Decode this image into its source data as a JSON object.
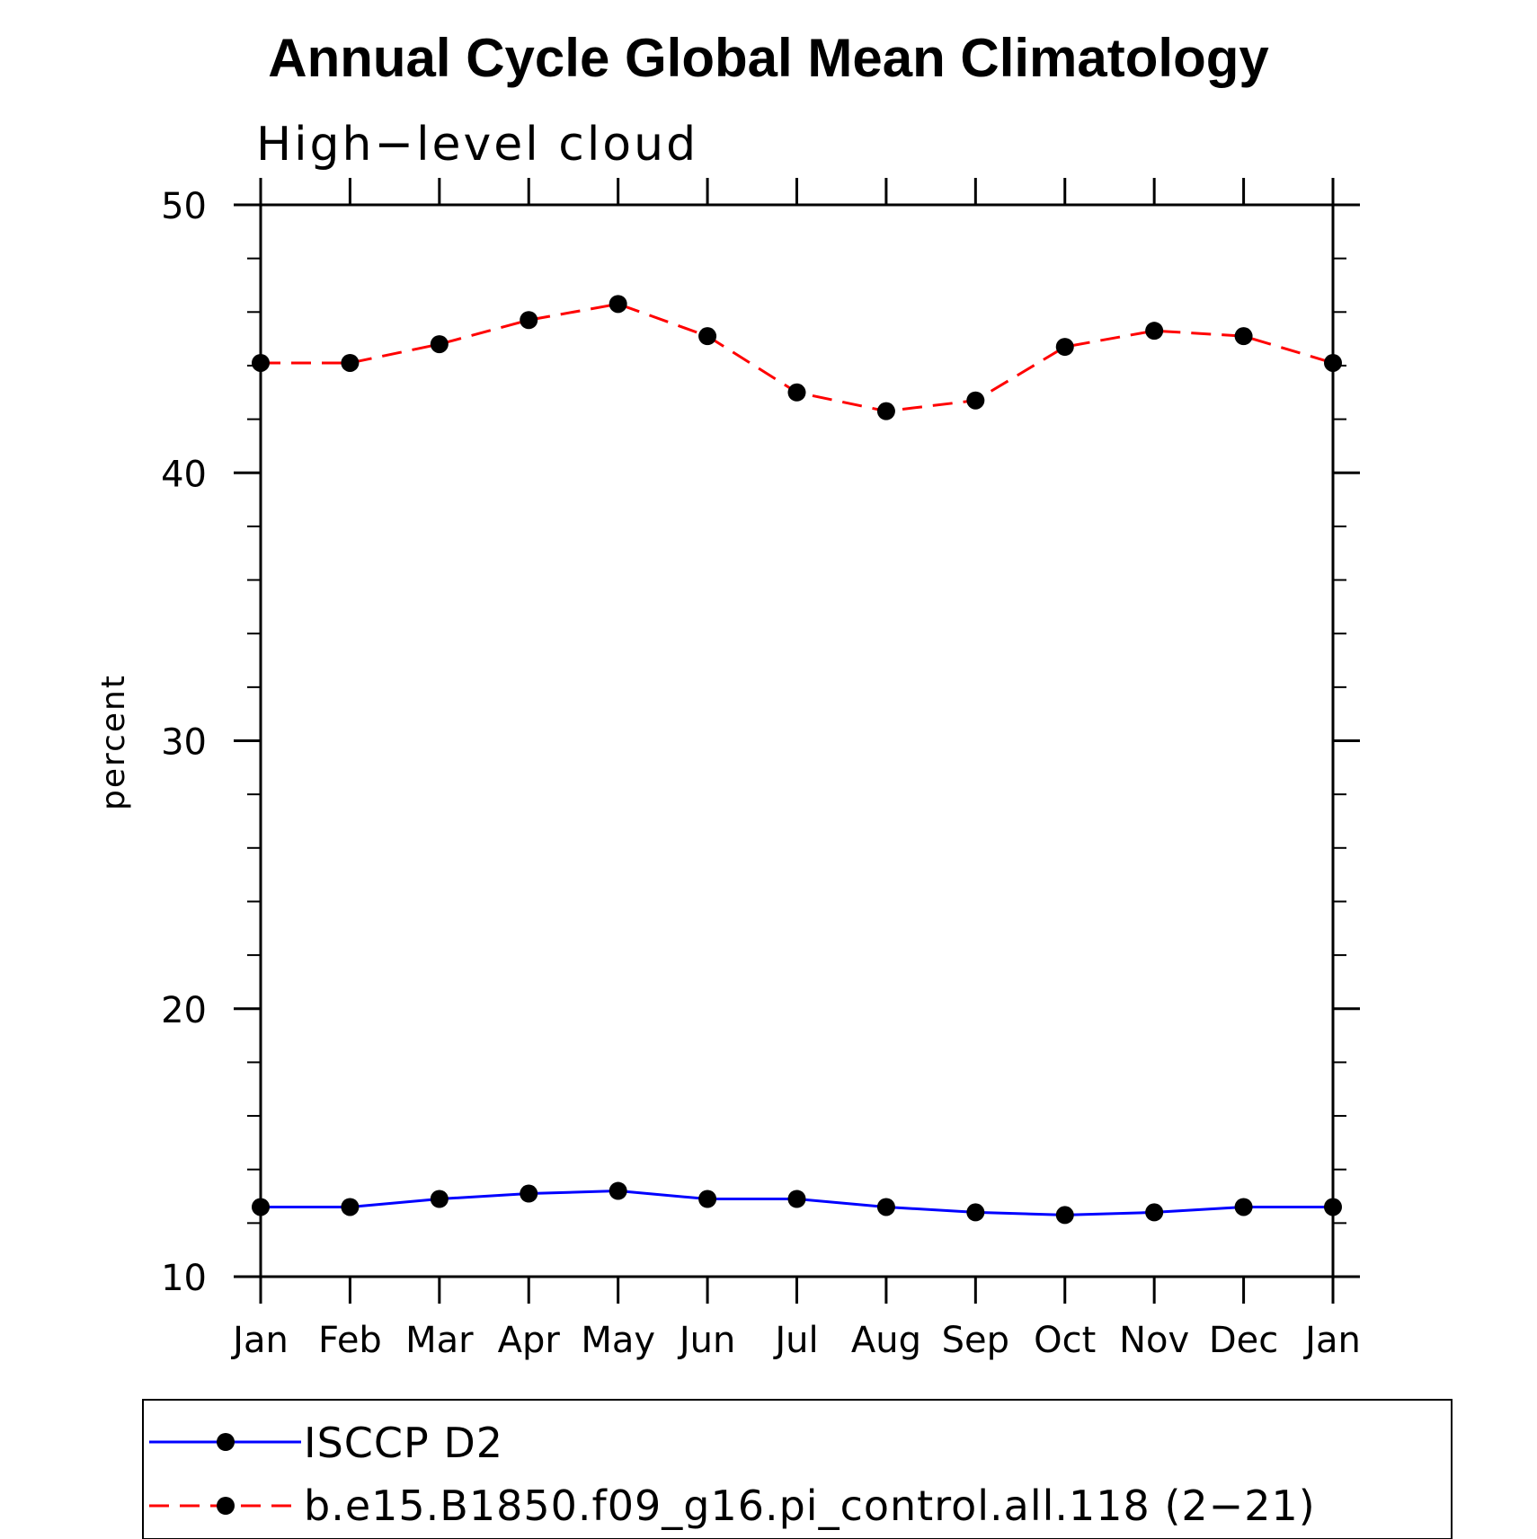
{
  "chart_data": {
    "type": "line",
    "title": "Annual Cycle Global Mean Climatology",
    "subtitle": "High−level cloud",
    "xlabel": "",
    "ylabel": "percent",
    "categories": [
      "Jan",
      "Feb",
      "Mar",
      "Apr",
      "May",
      "Jun",
      "Jul",
      "Aug",
      "Sep",
      "Oct",
      "Nov",
      "Dec",
      "Jan"
    ],
    "ylim": [
      10,
      50
    ],
    "yticks": [
      10,
      20,
      30,
      40,
      50
    ],
    "y_minor_step": 2,
    "grid": false,
    "legend_position": "bottom",
    "series": [
      {
        "name": "ISCCP D2",
        "color": "#0000ff",
        "dash": "solid",
        "marker": "filled-circle",
        "values": [
          12.6,
          12.6,
          12.9,
          13.1,
          13.2,
          12.9,
          12.9,
          12.6,
          12.4,
          12.3,
          12.4,
          12.6,
          12.6
        ]
      },
      {
        "name": "b.e15.B1850.f09_g16.pi_control.all.118 (2−21)",
        "color": "#ff0000",
        "dash": "dashed",
        "marker": "filled-circle",
        "values": [
          44.1,
          44.1,
          44.8,
          45.7,
          46.3,
          45.1,
          43.0,
          42.3,
          42.7,
          44.7,
          45.3,
          45.1,
          44.1
        ]
      }
    ]
  }
}
